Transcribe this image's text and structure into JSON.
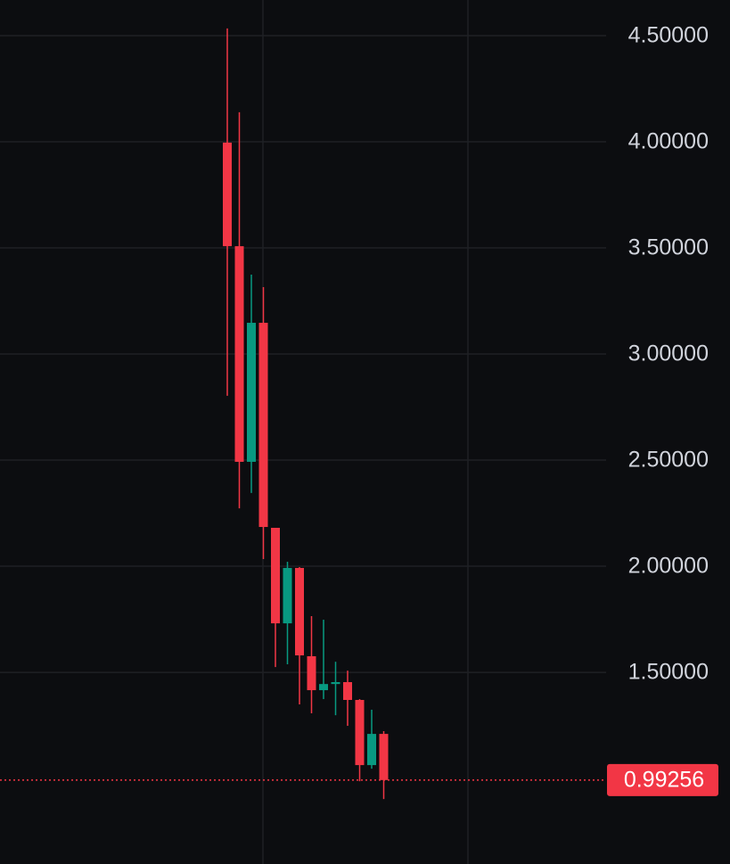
{
  "chart_data": {
    "type": "candlestick",
    "categories": [
      null,
      null,
      null,
      null,
      null,
      null,
      null,
      null,
      null,
      null,
      null,
      null,
      null,
      null
    ],
    "open": [
      3.996,
      3.508,
      2.492,
      3.147,
      2.181,
      1.731,
      1.992,
      1.576,
      1.416,
      1.445,
      1.454,
      1.37,
      1.063,
      1.21
    ],
    "high": [
      4.534,
      4.139,
      3.374,
      3.315,
      2.181,
      2.021,
      1.996,
      1.765,
      1.748,
      1.55,
      1.508,
      1.374,
      1.324,
      1.223
    ],
    "low": [
      2.803,
      2.273,
      2.345,
      2.034,
      1.525,
      1.538,
      1.349,
      1.307,
      1.374,
      1.298,
      1.248,
      0.987,
      1.046,
      0.903
    ],
    "close": [
      3.508,
      2.492,
      3.147,
      2.185,
      1.731,
      1.992,
      1.58,
      1.416,
      1.445,
      1.454,
      1.37,
      1.063,
      1.21,
      0.99256
    ],
    "up_color": "#089981",
    "down_color": "#f23645",
    "ylim": [
      0.597,
      4.668
    ],
    "yticks": [
      {
        "value": 1.5,
        "label": "1.50000"
      },
      {
        "value": 2,
        "label": "2.00000"
      },
      {
        "value": 2.5,
        "label": "2.50000"
      },
      {
        "value": 3,
        "label": "3.00000"
      },
      {
        "value": 3.5,
        "label": "3.50000"
      },
      {
        "value": 4,
        "label": "4.00000"
      },
      {
        "value": 4.5,
        "label": "4.50000"
      }
    ],
    "grid": true,
    "last_price": 0.99256
  }
}
